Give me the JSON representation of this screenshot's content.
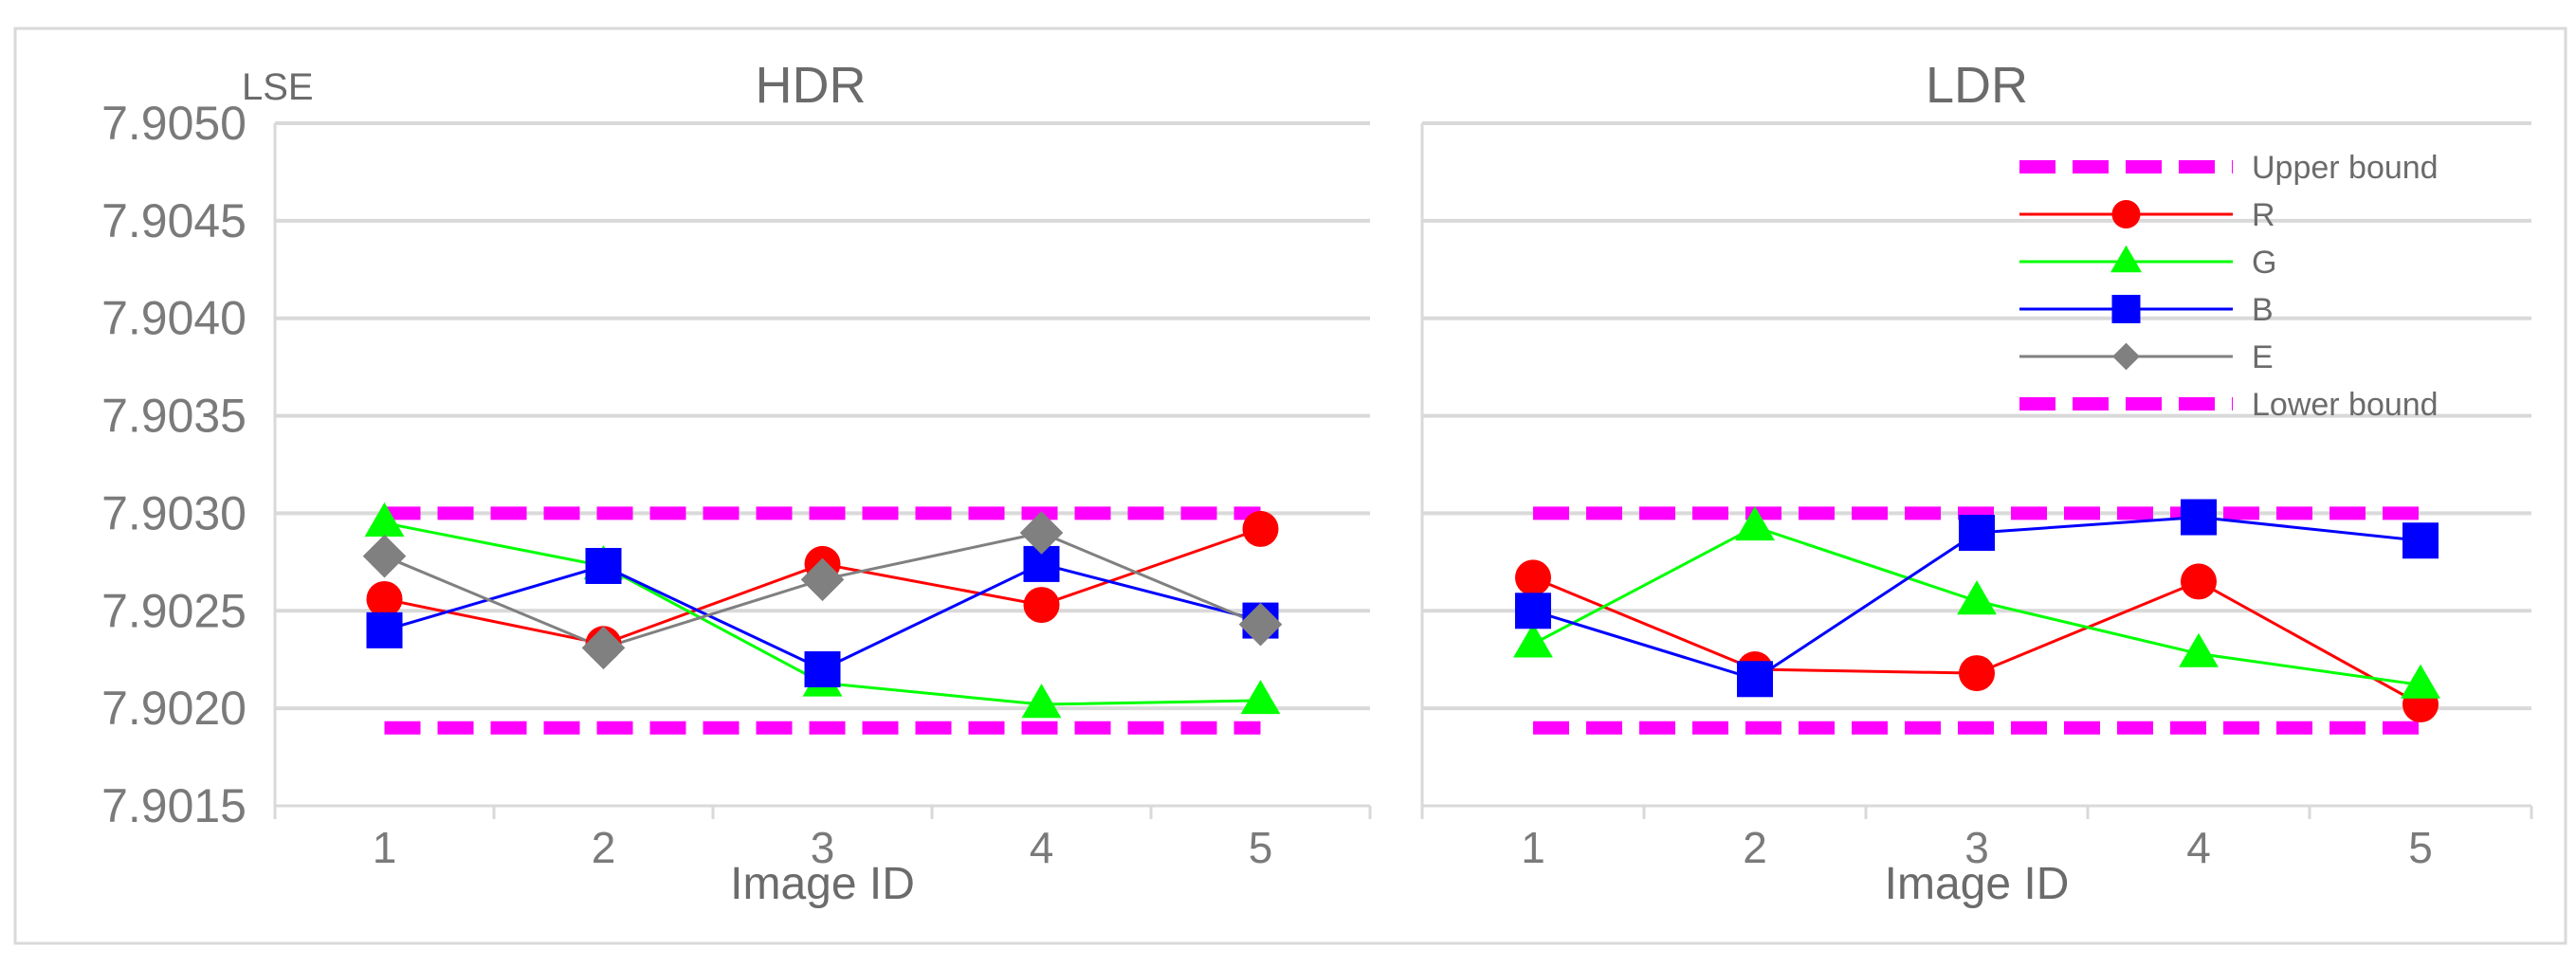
{
  "chart_data": [
    {
      "type": "line",
      "title": "HDR",
      "ylabel": "LSE",
      "xlabel": "Image ID",
      "categories": [
        "1",
        "2",
        "3",
        "4",
        "5"
      ],
      "ylim": [
        7.9015,
        7.905
      ],
      "yticks": [
        "7.9050",
        "7.9045",
        "7.9040",
        "7.9035",
        "7.9030",
        "7.9025",
        "7.9020",
        "7.9015"
      ],
      "grid": true,
      "series": [
        {
          "name": "Upper bound",
          "values": [
            7.903,
            7.903,
            7.903,
            7.903,
            7.903
          ],
          "color": "#ff00ff",
          "marker": "none",
          "dash": true
        },
        {
          "name": "R",
          "values": [
            7.90256,
            7.90233,
            7.90274,
            7.90253,
            7.90292
          ],
          "color": "#ff0000",
          "marker": "circle"
        },
        {
          "name": "G",
          "values": [
            7.90295,
            7.90273,
            7.90213,
            7.90202,
            7.90204
          ],
          "color": "#00ff00",
          "marker": "triangle"
        },
        {
          "name": "B",
          "values": [
            7.9024,
            7.90273,
            7.9022,
            7.90274,
            7.90245
          ],
          "color": "#0000ff",
          "marker": "square"
        },
        {
          "name": "E",
          "values": [
            7.90278,
            7.90231,
            7.90266,
            7.9029,
            7.90243
          ],
          "color": "#808080",
          "marker": "diamond"
        },
        {
          "name": "Lower bound",
          "values": [
            7.9019,
            7.9019,
            7.9019,
            7.9019,
            7.9019
          ],
          "color": "#ff00ff",
          "marker": "none",
          "dash": true
        }
      ]
    },
    {
      "type": "line",
      "title": "LDR",
      "xlabel": "Image ID",
      "categories": [
        "1",
        "2",
        "3",
        "4",
        "5"
      ],
      "ylim": [
        7.9015,
        7.905
      ],
      "grid": true,
      "legend": "top-right",
      "series": [
        {
          "name": "Upper bound",
          "values": [
            7.903,
            7.903,
            7.903,
            7.903,
            7.903
          ],
          "color": "#ff00ff",
          "marker": "none",
          "dash": true
        },
        {
          "name": "R",
          "values": [
            7.90267,
            7.9022,
            7.90218,
            7.90265,
            7.90202
          ],
          "color": "#ff0000",
          "marker": "circle"
        },
        {
          "name": "G",
          "values": [
            7.90233,
            7.90293,
            7.90255,
            7.90228,
            7.90212
          ],
          "color": "#00ff00",
          "marker": "triangle"
        },
        {
          "name": "B",
          "values": [
            7.9025,
            7.90215,
            7.9029,
            7.90298,
            7.90286
          ],
          "color": "#0000ff",
          "marker": "square"
        },
        {
          "name": "Lower bound",
          "values": [
            7.9019,
            7.9019,
            7.9019,
            7.9019,
            7.9019
          ],
          "color": "#ff00ff",
          "marker": "none",
          "dash": true
        }
      ]
    }
  ],
  "legend_items": [
    {
      "name": "Upper bound",
      "color": "#ff00ff",
      "marker": "none",
      "dash": true
    },
    {
      "name": "R",
      "color": "#ff0000",
      "marker": "circle"
    },
    {
      "name": "G",
      "color": "#00ff00",
      "marker": "triangle"
    },
    {
      "name": "B",
      "color": "#0000ff",
      "marker": "square"
    },
    {
      "name": "E",
      "color": "#808080",
      "marker": "diamond"
    },
    {
      "name": "Lower bound",
      "color": "#ff00ff",
      "marker": "none",
      "dash": true
    }
  ]
}
